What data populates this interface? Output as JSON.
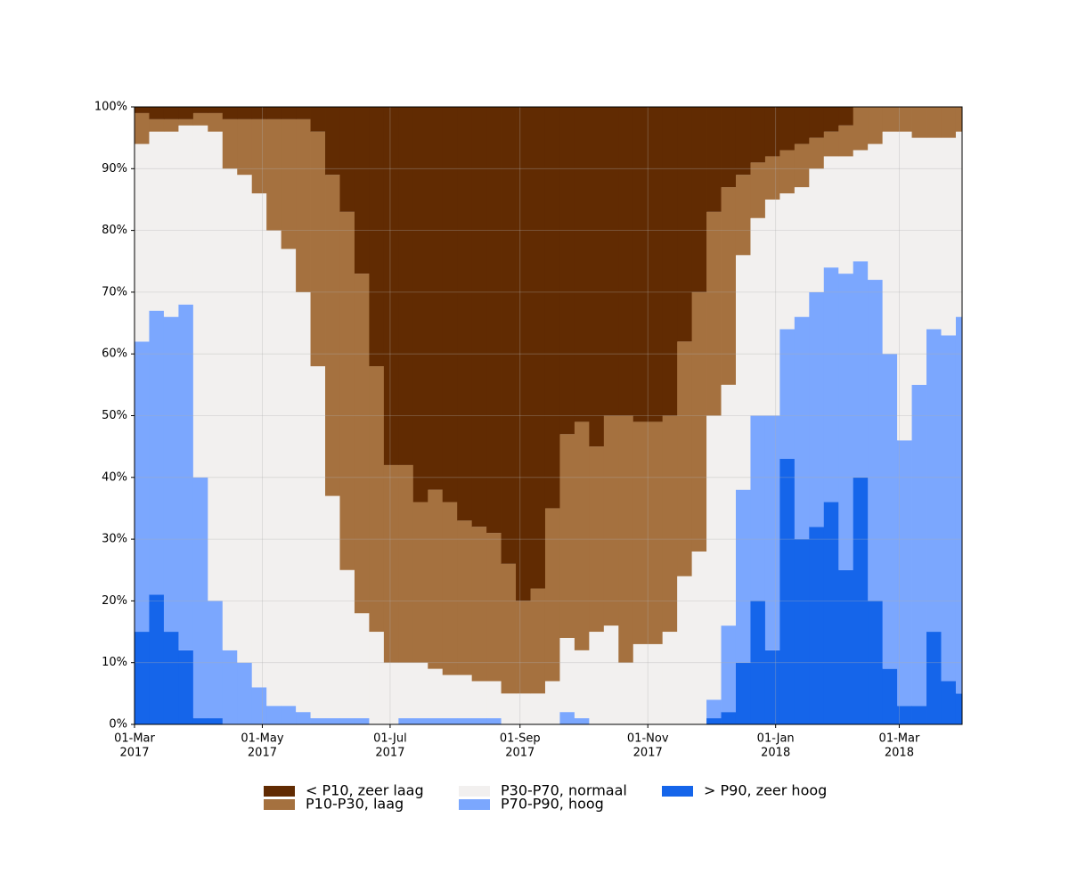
{
  "chart_data": {
    "type": "stacked-area",
    "x": [
      "2017-03-01",
      "2017-03-08",
      "2017-03-15",
      "2017-03-22",
      "2017-03-29",
      "2017-04-05",
      "2017-04-12",
      "2017-04-19",
      "2017-04-26",
      "2017-05-03",
      "2017-05-10",
      "2017-05-17",
      "2017-05-24",
      "2017-05-31",
      "2017-06-07",
      "2017-06-14",
      "2017-06-21",
      "2017-06-28",
      "2017-07-05",
      "2017-07-12",
      "2017-07-19",
      "2017-07-26",
      "2017-08-02",
      "2017-08-09",
      "2017-08-16",
      "2017-08-23",
      "2017-08-30",
      "2017-09-06",
      "2017-09-13",
      "2017-09-20",
      "2017-09-27",
      "2017-10-04",
      "2017-10-11",
      "2017-10-18",
      "2017-10-25",
      "2017-11-01",
      "2017-11-08",
      "2017-11-15",
      "2017-11-22",
      "2017-11-29",
      "2017-12-06",
      "2017-12-13",
      "2017-12-20",
      "2017-12-27",
      "2018-01-03",
      "2018-01-10",
      "2018-01-17",
      "2018-01-24",
      "2018-01-31",
      "2018-02-07",
      "2018-02-14",
      "2018-02-21",
      "2018-02-28",
      "2018-03-07",
      "2018-03-14",
      "2018-03-21",
      "2018-03-28"
    ],
    "series": [
      {
        "name": "< P10, zeer laag",
        "color": "#612b02",
        "values": [
          1,
          2,
          2,
          2,
          1,
          1,
          2,
          2,
          2,
          2,
          2,
          2,
          4,
          11,
          17,
          27,
          42,
          58,
          58,
          64,
          62,
          64,
          67,
          68,
          69,
          74,
          80,
          78,
          65,
          53,
          51,
          55,
          50,
          50,
          51,
          51,
          50,
          38,
          30,
          17,
          13,
          11,
          9,
          8,
          7,
          6,
          5,
          4,
          3,
          0,
          0,
          0,
          0,
          0,
          0,
          0,
          0
        ]
      },
      {
        "name": "P10-P30, laag",
        "color": "#a5713f",
        "values": [
          5,
          2,
          2,
          1,
          2,
          3,
          8,
          9,
          12,
          18,
          21,
          28,
          38,
          52,
          58,
          55,
          43,
          32,
          32,
          26,
          29,
          28,
          25,
          25,
          24,
          21,
          15,
          17,
          28,
          33,
          37,
          30,
          34,
          40,
          36,
          36,
          35,
          38,
          42,
          33,
          32,
          13,
          9,
          7,
          7,
          7,
          5,
          4,
          5,
          7,
          6,
          4,
          4,
          5,
          5,
          5,
          4
        ]
      },
      {
        "name": "P30-P70, normaal",
        "color": "#f2f0ef",
        "values": [
          32,
          29,
          30,
          29,
          57,
          76,
          78,
          79,
          80,
          77,
          74,
          68,
          57,
          36,
          24,
          17,
          15,
          10,
          9,
          9,
          8,
          7,
          7,
          6,
          6,
          5,
          5,
          5,
          7,
          12,
          11,
          15,
          16,
          10,
          13,
          13,
          15,
          24,
          28,
          46,
          39,
          38,
          32,
          35,
          22,
          21,
          20,
          18,
          19,
          18,
          22,
          36,
          50,
          40,
          31,
          32,
          30
        ]
      },
      {
        "name": "P70-P90, hoog",
        "color": "#7ba7fe",
        "values": [
          47,
          46,
          51,
          56,
          39,
          19,
          12,
          10,
          6,
          3,
          3,
          2,
          1,
          1,
          1,
          1,
          0,
          0,
          1,
          1,
          1,
          1,
          1,
          1,
          1,
          0,
          0,
          0,
          0,
          2,
          1,
          0,
          0,
          0,
          0,
          0,
          0,
          0,
          0,
          3,
          14,
          28,
          30,
          38,
          21,
          36,
          38,
          38,
          48,
          35,
          52,
          51,
          43,
          52,
          49,
          56,
          61
        ]
      },
      {
        "name": "> P90, zeer hoog",
        "color": "#1565ea",
        "values": [
          15,
          21,
          15,
          12,
          1,
          1,
          0,
          0,
          0,
          0,
          0,
          0,
          0,
          0,
          0,
          0,
          0,
          0,
          0,
          0,
          0,
          0,
          0,
          0,
          0,
          0,
          0,
          0,
          0,
          0,
          0,
          0,
          0,
          0,
          0,
          0,
          0,
          0,
          0,
          1,
          2,
          10,
          20,
          12,
          43,
          30,
          32,
          36,
          25,
          40,
          20,
          9,
          3,
          3,
          15,
          7,
          5
        ]
      }
    ],
    "xlim": [
      "2017-03-01",
      "2018-03-31"
    ],
    "xticks": [
      {
        "value": "2017-03-01",
        "label": [
          "01-Mar",
          "2017"
        ]
      },
      {
        "value": "2017-05-01",
        "label": [
          "01-May",
          "2017"
        ]
      },
      {
        "value": "2017-07-01",
        "label": [
          "01-Jul",
          "2017"
        ]
      },
      {
        "value": "2017-09-01",
        "label": [
          "01-Sep",
          "2017"
        ]
      },
      {
        "value": "2017-11-01",
        "label": [
          "01-Nov",
          "2017"
        ]
      },
      {
        "value": "2018-01-01",
        "label": [
          "01-Jan",
          "2018"
        ]
      },
      {
        "value": "2018-03-01",
        "label": [
          "01-Mar",
          "2018"
        ]
      }
    ],
    "ylim": [
      0,
      100
    ],
    "yticks": [
      {
        "value": 0,
        "label": "0%"
      },
      {
        "value": 10,
        "label": "10%"
      },
      {
        "value": 20,
        "label": "20%"
      },
      {
        "value": 30,
        "label": "30%"
      },
      {
        "value": 40,
        "label": "40%"
      },
      {
        "value": 50,
        "label": "50%"
      },
      {
        "value": 60,
        "label": "60%"
      },
      {
        "value": 70,
        "label": "70%"
      },
      {
        "value": 80,
        "label": "80%"
      },
      {
        "value": 90,
        "label": "90%"
      },
      {
        "value": 100,
        "label": "100%"
      }
    ],
    "grid": true,
    "legend": "bottom"
  }
}
